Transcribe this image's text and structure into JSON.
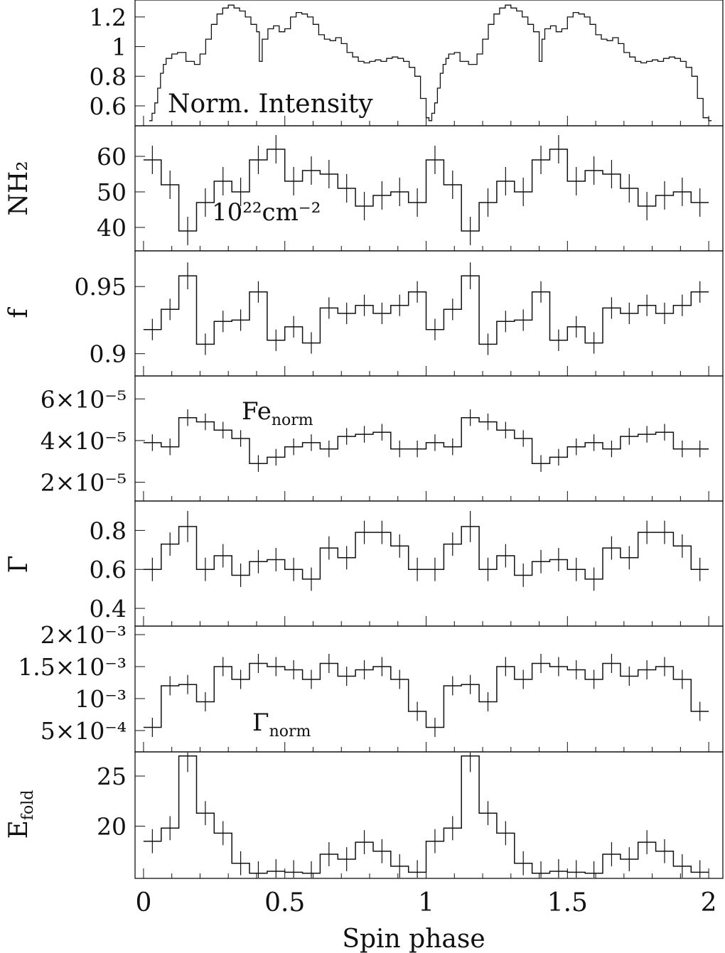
{
  "chart_data": {
    "type": "line",
    "xlabel": "Spin phase",
    "xlim": [
      -0.03,
      2.05
    ],
    "xticks": [
      "0",
      "0.5",
      "1",
      "1.5",
      "2"
    ],
    "xtick_values": [
      0,
      0.5,
      1,
      1.5,
      2
    ],
    "colors": {
      "line": "#111111",
      "background": "#ffffff"
    },
    "panels": [
      {
        "id": "norm-intensity",
        "ylabel": "",
        "annotation": "Norm. Intensity",
        "ylim": [
          0.48,
          1.3
        ],
        "yticks": [
          "0.6",
          "0.8",
          "1",
          "1.2"
        ],
        "ytick_values": [
          0.6,
          0.8,
          1.0,
          1.2
        ],
        "x": [
          0.02,
          0.03,
          0.04,
          0.05,
          0.06,
          0.07,
          0.08,
          0.1,
          0.12,
          0.15,
          0.18,
          0.2,
          0.22,
          0.24,
          0.26,
          0.28,
          0.3,
          0.32,
          0.34,
          0.36,
          0.38,
          0.4,
          0.41,
          0.42,
          0.44,
          0.46,
          0.48,
          0.5,
          0.52,
          0.54,
          0.56,
          0.58,
          0.6,
          0.62,
          0.64,
          0.66,
          0.68,
          0.7,
          0.72,
          0.74,
          0.76,
          0.78,
          0.8,
          0.82,
          0.84,
          0.86,
          0.88,
          0.9,
          0.92,
          0.94,
          0.96,
          0.98,
          1.0,
          1.01,
          1.02,
          1.03,
          1.04,
          1.05,
          1.06,
          1.07,
          1.08,
          1.1,
          1.12,
          1.15,
          1.18,
          1.2,
          1.22,
          1.24,
          1.26,
          1.28,
          1.3,
          1.32,
          1.34,
          1.36,
          1.38,
          1.4,
          1.41,
          1.42,
          1.44,
          1.46,
          1.48,
          1.5,
          1.52,
          1.54,
          1.56,
          1.58,
          1.6,
          1.62,
          1.64,
          1.66,
          1.68,
          1.7,
          1.72,
          1.74,
          1.76,
          1.78,
          1.8,
          1.82,
          1.84,
          1.86,
          1.88,
          1.9,
          1.92,
          1.94,
          1.96,
          1.98,
          2.0
        ],
        "y": [
          0.5,
          0.55,
          0.62,
          0.72,
          0.82,
          0.88,
          0.92,
          0.95,
          0.96,
          0.9,
          0.88,
          0.95,
          1.05,
          1.15,
          1.22,
          1.26,
          1.28,
          1.26,
          1.24,
          1.2,
          1.15,
          1.1,
          0.9,
          1.05,
          1.12,
          1.14,
          1.1,
          1.12,
          1.2,
          1.23,
          1.22,
          1.2,
          1.15,
          1.08,
          1.05,
          1.04,
          1.06,
          1.02,
          0.96,
          0.93,
          0.9,
          0.89,
          0.9,
          0.91,
          0.9,
          0.92,
          0.93,
          0.92,
          0.9,
          0.86,
          0.8,
          0.65,
          0.52,
          0.5,
          0.55,
          0.62,
          0.72,
          0.82,
          0.88,
          0.92,
          0.95,
          0.96,
          0.9,
          0.88,
          0.95,
          1.05,
          1.15,
          1.22,
          1.26,
          1.28,
          1.26,
          1.24,
          1.2,
          1.15,
          1.1,
          0.9,
          1.05,
          1.12,
          1.14,
          1.1,
          1.12,
          1.2,
          1.23,
          1.22,
          1.2,
          1.15,
          1.08,
          1.05,
          1.04,
          1.06,
          1.02,
          0.96,
          0.93,
          0.9,
          0.89,
          0.9,
          0.91,
          0.9,
          0.92,
          0.93,
          0.92,
          0.9,
          0.86,
          0.8,
          0.65,
          0.52,
          0.5
        ]
      },
      {
        "id": "nh2",
        "ylabel": "NH₂",
        "annotation": "10²²cm⁻²",
        "ylim": [
          34,
          68
        ],
        "yticks": [
          "40",
          "50",
          "60"
        ],
        "ytick_values": [
          40,
          50,
          60
        ],
        "x": [
          0.0,
          0.0625,
          0.125,
          0.1875,
          0.25,
          0.3125,
          0.375,
          0.4375,
          0.5,
          0.5625,
          0.625,
          0.6875,
          0.75,
          0.8125,
          0.875,
          0.9375,
          1.0,
          1.0625,
          1.125,
          1.1875,
          1.25,
          1.3125,
          1.375,
          1.4375,
          1.5,
          1.5625,
          1.625,
          1.6875,
          1.75,
          1.8125,
          1.875,
          1.9375
        ],
        "y": [
          59,
          52,
          39,
          47,
          53,
          50,
          59,
          62,
          53,
          56,
          55,
          51,
          46,
          49,
          50,
          47,
          59,
          52,
          39,
          47,
          53,
          50,
          59,
          62,
          53,
          56,
          55,
          51,
          46,
          49,
          50,
          47
        ],
        "err": [
          4,
          4,
          4,
          4,
          4,
          4,
          4,
          4,
          4,
          4,
          4,
          4,
          4,
          4,
          4,
          4,
          4,
          4,
          4,
          4,
          4,
          4,
          4,
          4,
          4,
          4,
          4,
          4,
          4,
          4,
          4,
          4
        ]
      },
      {
        "id": "f",
        "ylabel": "f",
        "annotation": "",
        "ylim": [
          0.885,
          0.975
        ],
        "yticks": [
          "0.9",
          "0.95"
        ],
        "ytick_values": [
          0.9,
          0.95
        ],
        "x": [
          0.0,
          0.0625,
          0.125,
          0.1875,
          0.25,
          0.3125,
          0.375,
          0.4375,
          0.5,
          0.5625,
          0.625,
          0.6875,
          0.75,
          0.8125,
          0.875,
          0.9375,
          1.0,
          1.0625,
          1.125,
          1.1875,
          1.25,
          1.3125,
          1.375,
          1.4375,
          1.5,
          1.5625,
          1.625,
          1.6875,
          1.75,
          1.8125,
          1.875,
          1.9375
        ],
        "y": [
          0.918,
          0.933,
          0.958,
          0.907,
          0.924,
          0.925,
          0.946,
          0.91,
          0.92,
          0.908,
          0.934,
          0.93,
          0.936,
          0.93,
          0.936,
          0.946,
          0.918,
          0.933,
          0.958,
          0.907,
          0.924,
          0.925,
          0.946,
          0.91,
          0.92,
          0.908,
          0.934,
          0.93,
          0.936,
          0.93,
          0.936,
          0.946
        ],
        "err": [
          0.008,
          0.008,
          0.01,
          0.008,
          0.008,
          0.008,
          0.008,
          0.008,
          0.008,
          0.008,
          0.008,
          0.008,
          0.008,
          0.008,
          0.008,
          0.008,
          0.008,
          0.008,
          0.01,
          0.008,
          0.008,
          0.008,
          0.008,
          0.008,
          0.008,
          0.008,
          0.008,
          0.008,
          0.008,
          0.008,
          0.008,
          0.008
        ]
      },
      {
        "id": "fe-norm",
        "ylabel": "",
        "annotation": "Fe",
        "annotation_sub": "norm",
        "ylim": [
          1.2e-05,
          7e-05
        ],
        "yticks": [
          "2×10⁻⁵",
          "4×10⁻⁵",
          "6×10⁻⁵"
        ],
        "ytick_values": [
          2e-05,
          4e-05,
          6e-05
        ],
        "x": [
          0.0,
          0.0625,
          0.125,
          0.1875,
          0.25,
          0.3125,
          0.375,
          0.4375,
          0.5,
          0.5625,
          0.625,
          0.6875,
          0.75,
          0.8125,
          0.875,
          0.9375,
          1.0,
          1.0625,
          1.125,
          1.1875,
          1.25,
          1.3125,
          1.375,
          1.4375,
          1.5,
          1.5625,
          1.625,
          1.6875,
          1.75,
          1.8125,
          1.875,
          1.9375
        ],
        "y": [
          3.9e-05,
          3.7e-05,
          5.1e-05,
          4.9e-05,
          4.5e-05,
          4.1e-05,
          2.9e-05,
          3.2e-05,
          3.7e-05,
          3.9e-05,
          3.6e-05,
          4.2e-05,
          4.3e-05,
          4.4e-05,
          3.6e-05,
          3.6e-05,
          3.9e-05,
          3.7e-05,
          5.1e-05,
          4.9e-05,
          4.5e-05,
          4.1e-05,
          2.9e-05,
          3.2e-05,
          3.7e-05,
          3.9e-05,
          3.6e-05,
          4.2e-05,
          4.3e-05,
          4.4e-05,
          3.6e-05,
          3.6e-05
        ],
        "err": [
          4e-06,
          4e-06,
          4e-06,
          4e-06,
          4e-06,
          4e-06,
          4e-06,
          4e-06,
          4e-06,
          4e-06,
          4e-06,
          4e-06,
          4e-06,
          4e-06,
          4e-06,
          4e-06,
          4e-06,
          4e-06,
          4e-06,
          4e-06,
          4e-06,
          4e-06,
          4e-06,
          4e-06,
          4e-06,
          4e-06,
          4e-06,
          4e-06,
          4e-06,
          4e-06,
          4e-06,
          4e-06
        ]
      },
      {
        "id": "gamma",
        "ylabel": "Γ",
        "annotation": "",
        "ylim": [
          0.32,
          0.94
        ],
        "yticks": [
          "0.4",
          "0.6",
          "0.8"
        ],
        "ytick_values": [
          0.4,
          0.6,
          0.8
        ],
        "x": [
          0.0,
          0.0625,
          0.125,
          0.1875,
          0.25,
          0.3125,
          0.375,
          0.4375,
          0.5,
          0.5625,
          0.625,
          0.6875,
          0.75,
          0.8125,
          0.875,
          0.9375,
          1.0,
          1.0625,
          1.125,
          1.1875,
          1.25,
          1.3125,
          1.375,
          1.4375,
          1.5,
          1.5625,
          1.625,
          1.6875,
          1.75,
          1.8125,
          1.875,
          1.9375
        ],
        "y": [
          0.6,
          0.73,
          0.82,
          0.6,
          0.67,
          0.57,
          0.64,
          0.65,
          0.6,
          0.55,
          0.71,
          0.66,
          0.79,
          0.79,
          0.72,
          0.6,
          0.6,
          0.73,
          0.82,
          0.6,
          0.67,
          0.57,
          0.64,
          0.65,
          0.6,
          0.55,
          0.71,
          0.66,
          0.79,
          0.79,
          0.72,
          0.6
        ],
        "err": [
          0.06,
          0.06,
          0.08,
          0.06,
          0.06,
          0.06,
          0.06,
          0.06,
          0.06,
          0.06,
          0.06,
          0.06,
          0.06,
          0.06,
          0.06,
          0.06,
          0.06,
          0.06,
          0.08,
          0.06,
          0.06,
          0.06,
          0.06,
          0.06,
          0.06,
          0.06,
          0.06,
          0.06,
          0.06,
          0.06,
          0.06,
          0.06
        ]
      },
      {
        "id": "gamma-norm",
        "ylabel": "",
        "annotation": "Γ",
        "annotation_sub": "norm",
        "ylim": [
          0.0002,
          0.0021
        ],
        "yticks": [
          "5×10⁻⁴",
          "10⁻³",
          "1.5×10⁻³",
          "2×10⁻³"
        ],
        "ytick_values": [
          0.0005,
          0.001,
          0.0015,
          0.002
        ],
        "x": [
          0.0,
          0.0625,
          0.125,
          0.1875,
          0.25,
          0.3125,
          0.375,
          0.4375,
          0.5,
          0.5625,
          0.625,
          0.6875,
          0.75,
          0.8125,
          0.875,
          0.9375,
          1.0,
          1.0625,
          1.125,
          1.1875,
          1.25,
          1.3125,
          1.375,
          1.4375,
          1.5,
          1.5625,
          1.625,
          1.6875,
          1.75,
          1.8125,
          1.875,
          1.9375
        ],
        "y": [
          0.00055,
          0.0012,
          0.00122,
          0.00095,
          0.0015,
          0.0013,
          0.00155,
          0.0015,
          0.00145,
          0.0013,
          0.00155,
          0.00135,
          0.00145,
          0.0015,
          0.0013,
          0.0008,
          0.00055,
          0.0012,
          0.00122,
          0.00095,
          0.0015,
          0.0013,
          0.00155,
          0.0015,
          0.00145,
          0.0013,
          0.00155,
          0.00135,
          0.00145,
          0.0015,
          0.0013,
          0.0008
        ],
        "err": [
          0.00015,
          0.00015,
          0.00015,
          0.00015,
          0.00015,
          0.00015,
          0.00015,
          0.00015,
          0.00015,
          0.00015,
          0.00015,
          0.00015,
          0.00015,
          0.00015,
          0.00015,
          0.00015,
          0.00015,
          0.00015,
          0.00015,
          0.00015,
          0.00015,
          0.00015,
          0.00015,
          0.00015,
          0.00015,
          0.00015,
          0.00015,
          0.00015,
          0.00015,
          0.00015,
          0.00015,
          0.00015
        ]
      },
      {
        "id": "e-fold",
        "ylabel": "E",
        "ylabel_sub": "fold",
        "annotation": "",
        "ylim": [
          15.0,
          27.2
        ],
        "yticks": [
          "20",
          "25"
        ],
        "ytick_values": [
          20,
          25
        ],
        "x": [
          0.0,
          0.0625,
          0.125,
          0.1875,
          0.25,
          0.3125,
          0.375,
          0.4375,
          0.5,
          0.5625,
          0.625,
          0.6875,
          0.75,
          0.8125,
          0.875,
          0.9375,
          1.0,
          1.0625,
          1.125,
          1.1875,
          1.25,
          1.3125,
          1.375,
          1.4375,
          1.5,
          1.5625,
          1.625,
          1.6875,
          1.75,
          1.8125,
          1.875,
          1.9375
        ],
        "y": [
          18.5,
          19.8,
          27.0,
          21.3,
          19.3,
          16.3,
          15.3,
          15.5,
          15.4,
          15.3,
          17.2,
          16.7,
          18.4,
          17.5,
          16.0,
          15.4,
          18.5,
          19.8,
          27.0,
          21.3,
          19.3,
          16.3,
          15.3,
          15.5,
          15.4,
          15.3,
          17.2,
          16.7,
          18.4,
          17.5,
          16.0,
          15.4
        ],
        "err": [
          1.2,
          1.2,
          1.6,
          1.2,
          1.2,
          1.2,
          1.2,
          1.2,
          1.2,
          1.2,
          1.2,
          1.2,
          1.2,
          1.2,
          1.2,
          1.2,
          1.2,
          1.2,
          1.6,
          1.2,
          1.2,
          1.2,
          1.2,
          1.2,
          1.2,
          1.2,
          1.2,
          1.2,
          1.2,
          1.2,
          1.2,
          1.2
        ]
      }
    ]
  }
}
